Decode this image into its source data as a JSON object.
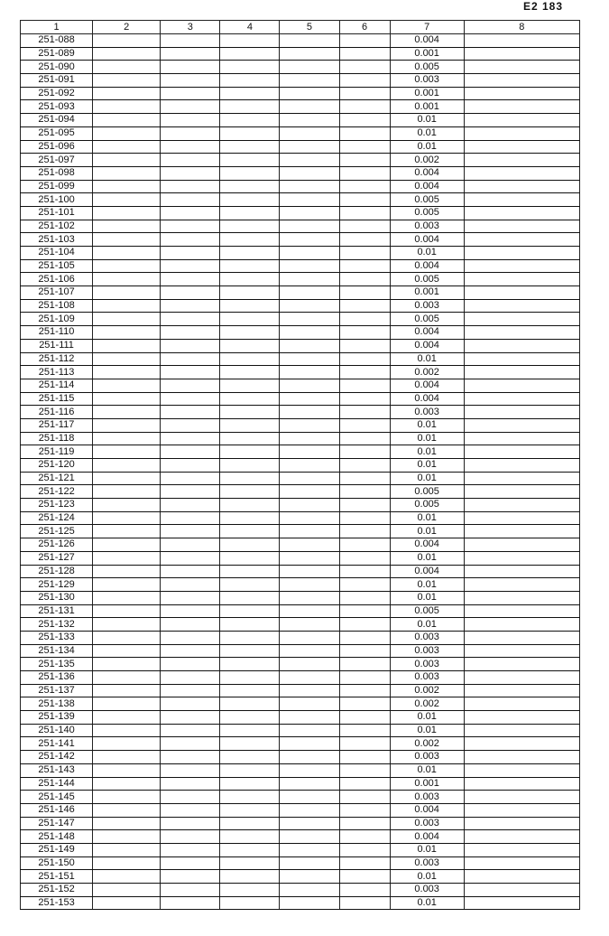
{
  "page_number": "Е2 183",
  "table": {
    "headers": [
      "1",
      "2",
      "3",
      "4",
      "5",
      "6",
      "7",
      "8"
    ],
    "rows": [
      [
        "251-088",
        "0.004"
      ],
      [
        "251-089",
        "0.001"
      ],
      [
        "251-090",
        "0.005"
      ],
      [
        "251-091",
        "0.003"
      ],
      [
        "251-092",
        "0.001"
      ],
      [
        "251-093",
        "0.001"
      ],
      [
        "251-094",
        "0.01"
      ],
      [
        "251-095",
        "0.01"
      ],
      [
        "251-096",
        "0.01"
      ],
      [
        "251-097",
        "0.002"
      ],
      [
        "251-098",
        "0.004"
      ],
      [
        "251-099",
        "0.004"
      ],
      [
        "251-100",
        "0.005"
      ],
      [
        "251-101",
        "0.005"
      ],
      [
        "251-102",
        "0.003"
      ],
      [
        "251-103",
        "0.004"
      ],
      [
        "251-104",
        "0.01"
      ],
      [
        "251-105",
        "0.004"
      ],
      [
        "251-106",
        "0.005"
      ],
      [
        "251-107",
        "0.001"
      ],
      [
        "251-108",
        "0.003"
      ],
      [
        "251-109",
        "0.005"
      ],
      [
        "251-110",
        "0.004"
      ],
      [
        "251-111",
        "0.004"
      ],
      [
        "251-112",
        "0.01"
      ],
      [
        "251-113",
        "0.002"
      ],
      [
        "251-114",
        "0.004"
      ],
      [
        "251-115",
        "0.004"
      ],
      [
        "251-116",
        "0.003"
      ],
      [
        "251-117",
        "0.01"
      ],
      [
        "251-118",
        "0.01"
      ],
      [
        "251-119",
        "0.01"
      ],
      [
        "251-120",
        "0.01"
      ],
      [
        "251-121",
        "0.01"
      ],
      [
        "251-122",
        "0.005"
      ],
      [
        "251-123",
        "0.005"
      ],
      [
        "251-124",
        "0.01"
      ],
      [
        "251-125",
        "0.01"
      ],
      [
        "251-126",
        "0.004"
      ],
      [
        "251-127",
        "0.01"
      ],
      [
        "251-128",
        "0.004"
      ],
      [
        "251-129",
        "0.01"
      ],
      [
        "251-130",
        "0.01"
      ],
      [
        "251-131",
        "0.005"
      ],
      [
        "251-132",
        "0.01"
      ],
      [
        "251-133",
        "0.003"
      ],
      [
        "251-134",
        "0.003"
      ],
      [
        "251-135",
        "0.003"
      ],
      [
        "251-136",
        "0.003"
      ],
      [
        "251-137",
        "0.002"
      ],
      [
        "251-138",
        "0.002"
      ],
      [
        "251-139",
        "0.01"
      ],
      [
        "251-140",
        "0.01"
      ],
      [
        "251-141",
        "0.002"
      ],
      [
        "251-142",
        "0.003"
      ],
      [
        "251-143",
        "0.01"
      ],
      [
        "251-144",
        "0.001"
      ],
      [
        "251-145",
        "0.003"
      ],
      [
        "251-146",
        "0.004"
      ],
      [
        "251-147",
        "0.003"
      ],
      [
        "251-148",
        "0.004"
      ],
      [
        "251-149",
        "0.01"
      ],
      [
        "251-150",
        "0.003"
      ],
      [
        "251-151",
        "0.01"
      ],
      [
        "251-152",
        "0.003"
      ],
      [
        "251-153",
        "0.01"
      ]
    ]
  }
}
